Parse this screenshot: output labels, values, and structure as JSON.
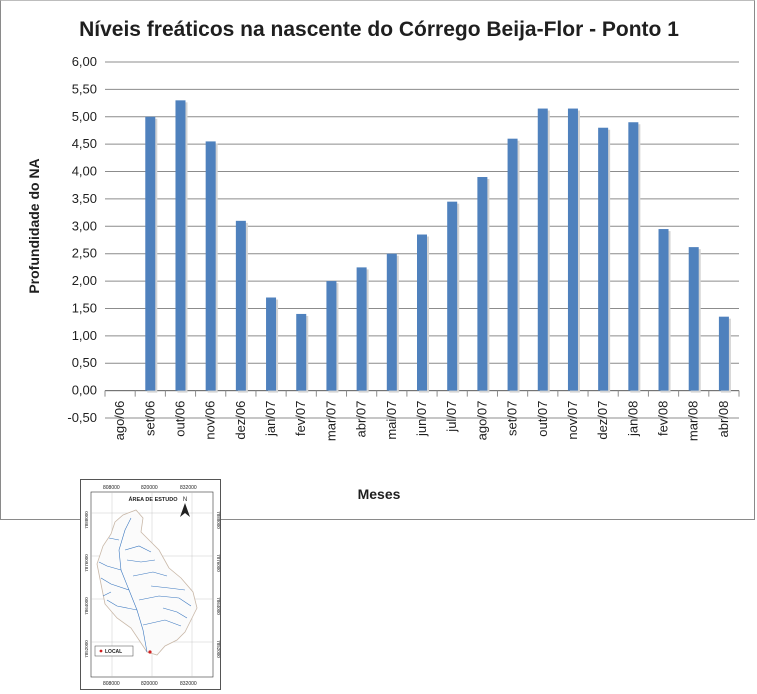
{
  "chart_data": {
    "type": "bar",
    "title": "Níveis freáticos na nascente do Córrego Beija-Flor - Ponto 1",
    "xlabel": "Meses",
    "ylabel": "Profundidade do NA",
    "ylim": [
      -0.5,
      6.0
    ],
    "ytick_step": 0.5,
    "yticks": [
      "-0,50",
      "0,00",
      "0,50",
      "1,00",
      "1,50",
      "2,00",
      "2,50",
      "3,00",
      "3,50",
      "4,00",
      "4,50",
      "5,00",
      "5,50",
      "6,00"
    ],
    "grid": true,
    "legend": "none",
    "bar_color": "#4f81bd",
    "categories": [
      "ago/06",
      "set/06",
      "out/06",
      "nov/06",
      "dez/06",
      "jan/07",
      "fev/07",
      "mar/07",
      "abr/07",
      "mai/07",
      "jun/07",
      "jul/07",
      "ago/07",
      "set/07",
      "out/07",
      "nov/07",
      "dez/07",
      "jan/08",
      "fev/08",
      "mar/08",
      "abr/08"
    ],
    "values": [
      null,
      5.0,
      5.3,
      4.55,
      3.1,
      1.7,
      1.4,
      2.0,
      2.25,
      2.5,
      2.85,
      3.45,
      3.9,
      4.6,
      5.15,
      5.15,
      4.8,
      4.9,
      2.95,
      2.62,
      1.35
    ]
  },
  "map": {
    "title": "ÁREA DE ESTUDO",
    "north": "N",
    "legend_label": "LOCAL",
    "x_labels": [
      "808000",
      "820000",
      "832000"
    ],
    "y_labels": [
      "7888000",
      "7876000",
      "7864000",
      "7852000"
    ]
  }
}
